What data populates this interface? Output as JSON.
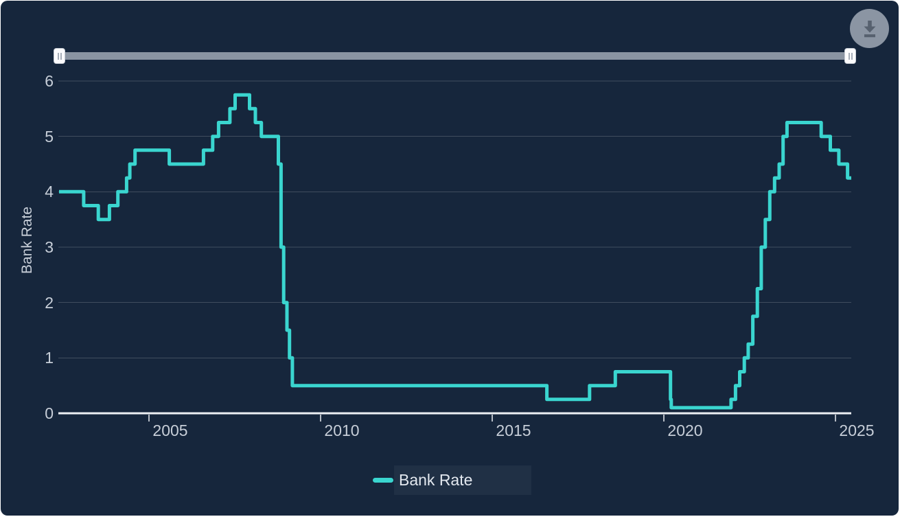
{
  "chart_data": {
    "type": "line",
    "step": "after",
    "title": "",
    "xlabel": "",
    "ylabel": "Bank Rate",
    "x_ticks": [
      2005,
      2010,
      2015,
      2020,
      2025
    ],
    "y_ticks": [
      0,
      1,
      2,
      3,
      4,
      5,
      6
    ],
    "xlim": [
      2002.38,
      2025.46
    ],
    "ylim": [
      0,
      6.2
    ],
    "grid": "horizontal",
    "legend_position": "bottom-center",
    "series": [
      {
        "name": "Bank Rate",
        "color": "#3AD5CF",
        "points": [
          [
            "2002-05-01",
            4.0
          ],
          [
            "2003-02-06",
            3.75
          ],
          [
            "2003-07-10",
            3.5
          ],
          [
            "2003-11-06",
            3.75
          ],
          [
            "2004-02-05",
            4.0
          ],
          [
            "2004-05-06",
            4.25
          ],
          [
            "2004-06-10",
            4.5
          ],
          [
            "2004-08-05",
            4.75
          ],
          [
            "2005-08-04",
            4.5
          ],
          [
            "2006-08-03",
            4.75
          ],
          [
            "2006-11-09",
            5.0
          ],
          [
            "2007-01-11",
            5.25
          ],
          [
            "2007-05-10",
            5.5
          ],
          [
            "2007-07-05",
            5.75
          ],
          [
            "2007-12-06",
            5.5
          ],
          [
            "2008-02-07",
            5.25
          ],
          [
            "2008-04-10",
            5.0
          ],
          [
            "2008-10-08",
            4.5
          ],
          [
            "2008-11-06",
            3.0
          ],
          [
            "2008-12-04",
            2.0
          ],
          [
            "2009-01-08",
            1.5
          ],
          [
            "2009-02-05",
            1.0
          ],
          [
            "2009-03-05",
            0.5
          ],
          [
            "2016-08-04",
            0.25
          ],
          [
            "2017-11-02",
            0.5
          ],
          [
            "2018-08-02",
            0.75
          ],
          [
            "2020-03-11",
            0.25
          ],
          [
            "2020-03-19",
            0.1
          ],
          [
            "2021-12-16",
            0.25
          ],
          [
            "2022-02-03",
            0.5
          ],
          [
            "2022-03-17",
            0.75
          ],
          [
            "2022-05-05",
            1.0
          ],
          [
            "2022-06-16",
            1.25
          ],
          [
            "2022-08-04",
            1.75
          ],
          [
            "2022-09-22",
            2.25
          ],
          [
            "2022-11-03",
            3.0
          ],
          [
            "2022-12-15",
            3.5
          ],
          [
            "2023-02-02",
            4.0
          ],
          [
            "2023-03-23",
            4.25
          ],
          [
            "2023-05-11",
            4.5
          ],
          [
            "2023-06-22",
            5.0
          ],
          [
            "2023-08-03",
            5.25
          ],
          [
            "2024-08-01",
            5.0
          ],
          [
            "2024-11-07",
            4.75
          ],
          [
            "2025-02-06",
            4.5
          ],
          [
            "2025-05-08",
            4.25
          ]
        ]
      }
    ]
  },
  "legend": {
    "label": "Bank Rate"
  },
  "toolbar": {
    "download_label": "Download",
    "download_icon": "download-icon"
  },
  "slider": {
    "left_icon": "grip-icon",
    "right_icon": "grip-icon"
  },
  "colors": {
    "card_background": "#16263C",
    "page_background": "#FFFFFF",
    "line": "#3AD5CF",
    "axis_text": "#C7CED8",
    "axis_line": "#ECEFF3",
    "gridline": "rgba(255,255,255,0.18)",
    "slider_track": "#8A94A2",
    "slider_handle": "#FBFBFD",
    "download_button": "#8B95A3",
    "download_icon_color": "#57616F"
  }
}
